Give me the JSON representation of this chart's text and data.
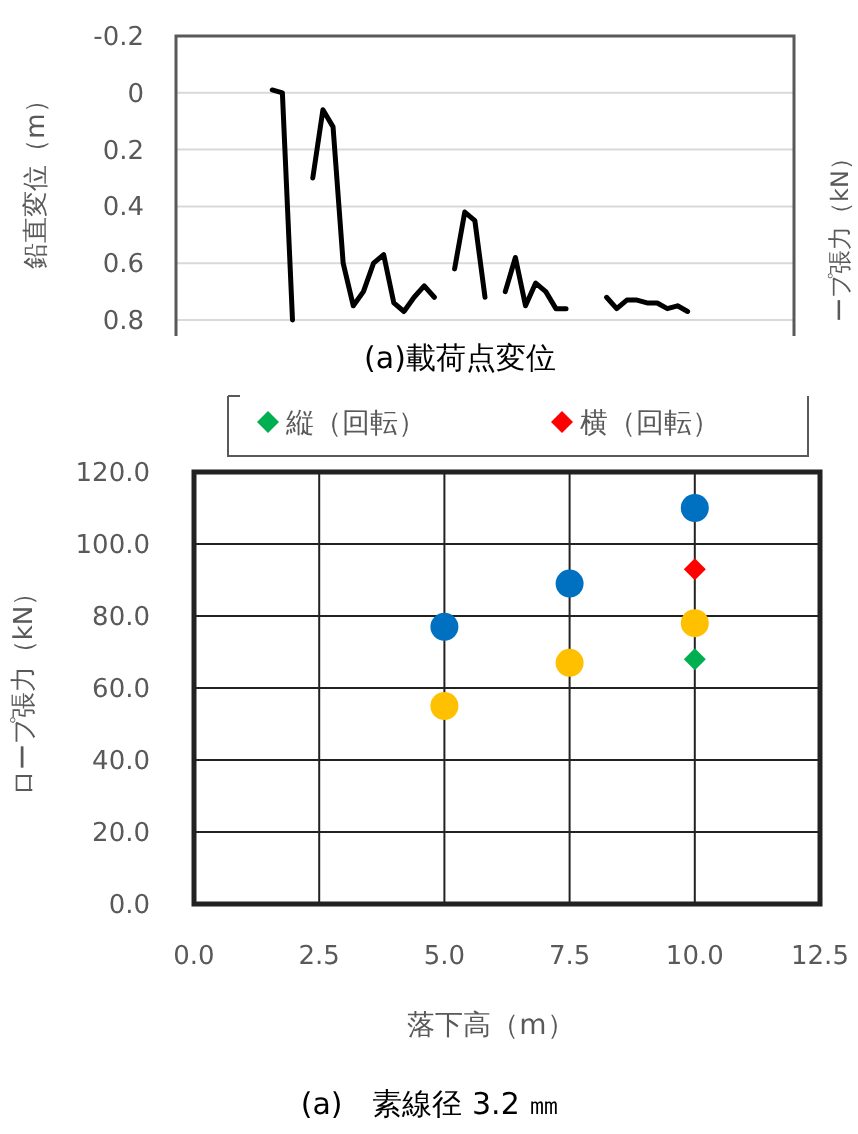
{
  "chart_data": [
    {
      "type": "line",
      "ylabel": "鉛直変位（m）",
      "y2label": "ープ張力（kN）",
      "annotations": [
        "(a)載荷点変位"
      ],
      "categories": [
        null,
        null,
        null,
        null,
        null,
        null,
        null,
        null,
        null,
        null,
        null,
        null,
        null,
        null,
        null,
        null,
        null,
        null,
        null,
        null,
        null,
        null,
        null,
        null,
        null,
        null,
        null,
        null,
        null,
        null,
        null,
        null,
        null,
        null,
        null,
        null,
        null,
        null,
        null,
        null,
        null,
        null,
        null,
        null,
        null,
        null,
        null,
        null,
        null,
        null,
        null,
        null,
        null,
        null,
        null,
        null,
        null,
        null,
        null,
        null,
        null
      ],
      "ylim": [
        0.8,
        -0.2
      ],
      "yticks": [
        -0.2,
        0,
        0.2,
        0.4,
        0.6,
        0.8
      ],
      "grid": true,
      "tick_labels": "y",
      "line_style": "solid",
      "marker": "none",
      "series": [
        {
          "color": "#000000",
          "values": [
            null,
            null,
            null,
            null,
            null,
            null,
            null,
            null,
            null,
            -0.01,
            0.0,
            0.8,
            null,
            0.3,
            0.06,
            0.12,
            0.6,
            0.75,
            0.7,
            0.6,
            0.57,
            0.74,
            0.77,
            0.72,
            0.68,
            0.72,
            null,
            0.62,
            0.42,
            0.45,
            0.72,
            null,
            0.7,
            0.58,
            0.75,
            0.67,
            0.7,
            0.76,
            0.76,
            null,
            null,
            null,
            0.72,
            0.76,
            0.73,
            0.73,
            0.74,
            0.74,
            0.76,
            0.75,
            0.77,
            null,
            null,
            null,
            null,
            null,
            null,
            null,
            null,
            null,
            null
          ]
        }
      ]
    },
    {
      "type": "scatter",
      "xlabel": "落下高（m）",
      "ylabel": "ロープ張力（kN）",
      "annotations": [
        "(a)　素線径 3.2 ㎜"
      ],
      "xlim": [
        0,
        12.5
      ],
      "xticks": [
        {
          "value": 0,
          "label": "0.0"
        },
        {
          "value": 2.5,
          "label": "2.5"
        },
        {
          "value": 5,
          "label": "5.0"
        },
        {
          "value": 7.5,
          "label": "7.5"
        },
        {
          "value": 10,
          "label": "10.0"
        },
        {
          "value": 12.5,
          "label": "12.5"
        }
      ],
      "ylim": [
        0,
        120
      ],
      "yticks": [
        {
          "value": 0,
          "label": "0.0"
        },
        {
          "value": 20,
          "label": "20.0"
        },
        {
          "value": 40,
          "label": "40.0"
        },
        {
          "value": 60,
          "label": "60.0"
        },
        {
          "value": 80,
          "label": "80.0"
        },
        {
          "value": 100,
          "label": "100.0"
        },
        {
          "value": 120,
          "label": "120.0"
        }
      ],
      "grid": true,
      "legend": "top",
      "series": [
        {
          "name": "縦（回転）",
          "color": "#00b050",
          "marker": "diamond",
          "x": [
            10
          ],
          "values": [
            68
          ]
        },
        {
          "name": "横（回転）",
          "color": "#ff0000",
          "marker": "diamond",
          "x": [
            10
          ],
          "values": [
            93
          ]
        },
        {
          "color": "#0070c0",
          "marker": "circle",
          "x": [
            5,
            7.5,
            10
          ],
          "values": [
            77,
            89,
            110
          ]
        },
        {
          "color": "#ffc000",
          "marker": "circle",
          "x": [
            5,
            7.5,
            10
          ],
          "values": [
            55,
            67,
            78
          ]
        }
      ]
    }
  ]
}
